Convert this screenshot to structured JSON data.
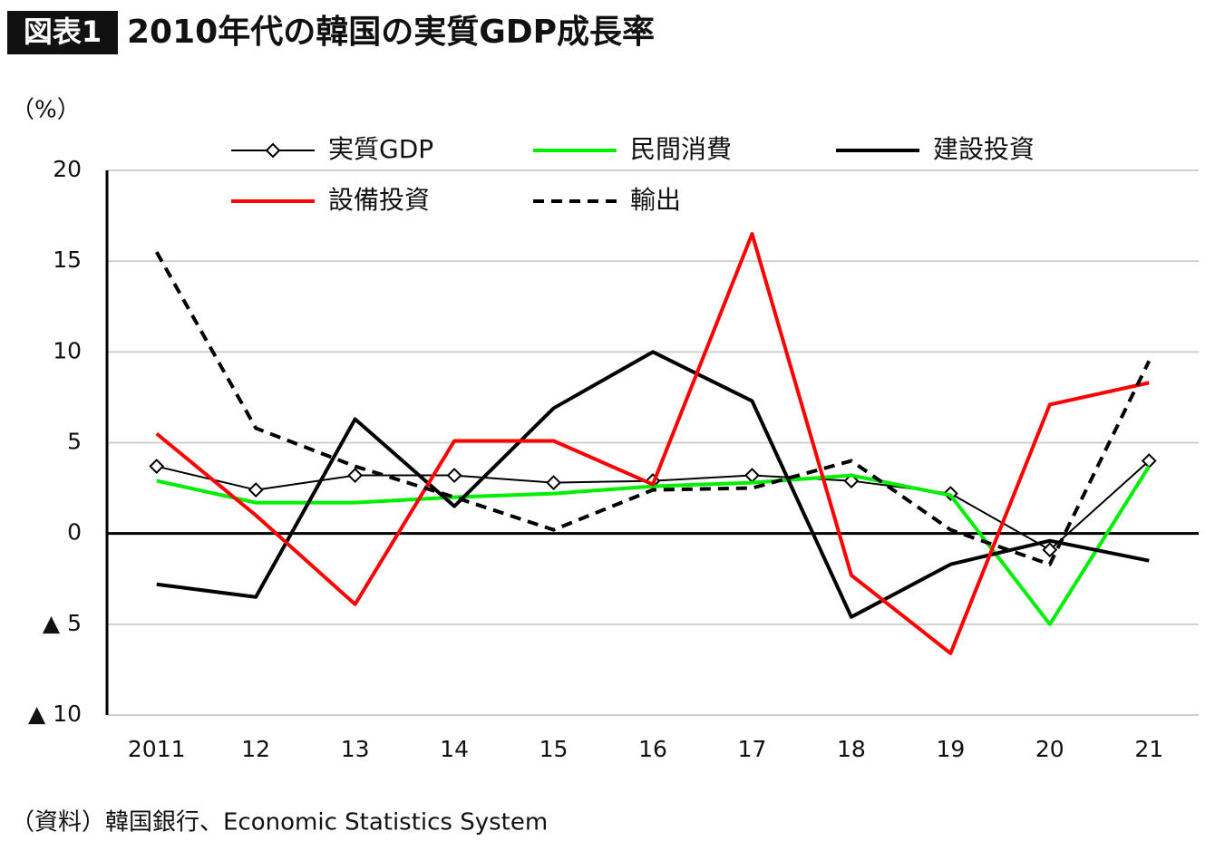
{
  "chart_data": {
    "type": "line",
    "badge": "図表1",
    "title": "2010年代の韓国の実質GDP成長率",
    "y_unit": "（%）",
    "source": "（資料）韓国銀行、Economic Statistics System",
    "categories": [
      "2011",
      "12",
      "13",
      "14",
      "15",
      "16",
      "17",
      "18",
      "19",
      "20",
      "21"
    ],
    "ylim": [
      -10,
      20
    ],
    "yticks": [
      {
        "value": -10,
        "label": "▲ 10"
      },
      {
        "value": -5,
        "label": "▲ 5"
      },
      0,
      5,
      10,
      15,
      20
    ],
    "grid": true,
    "legend": "top",
    "series": [
      {
        "name": "実質GDP",
        "color": "#000000",
        "marker": "diamond",
        "values": [
          3.7,
          2.4,
          3.2,
          3.2,
          2.8,
          2.9,
          3.2,
          2.9,
          2.2,
          -0.9,
          4.0
        ]
      },
      {
        "name": "民間消費",
        "color": "#00ee00",
        "values": [
          2.9,
          1.7,
          1.7,
          2.0,
          2.2,
          2.6,
          2.8,
          3.2,
          2.1,
          -5.0,
          3.7
        ]
      },
      {
        "name": "建設投資",
        "color": "#000000",
        "values": [
          -2.8,
          -3.5,
          6.3,
          1.5,
          6.9,
          10.0,
          7.3,
          -4.6,
          -1.7,
          -0.4,
          -1.5
        ]
      },
      {
        "name": "設備投資",
        "color": "#ff0000",
        "values": [
          5.5,
          1.0,
          -3.9,
          5.1,
          5.1,
          2.7,
          16.5,
          -2.3,
          -6.6,
          7.1,
          8.3
        ]
      },
      {
        "name": "輸出",
        "color": "#000000",
        "dash": true,
        "values": [
          15.5,
          5.8,
          3.7,
          2.0,
          0.2,
          2.4,
          2.5,
          4.0,
          0.2,
          -1.7,
          9.5
        ]
      }
    ]
  }
}
